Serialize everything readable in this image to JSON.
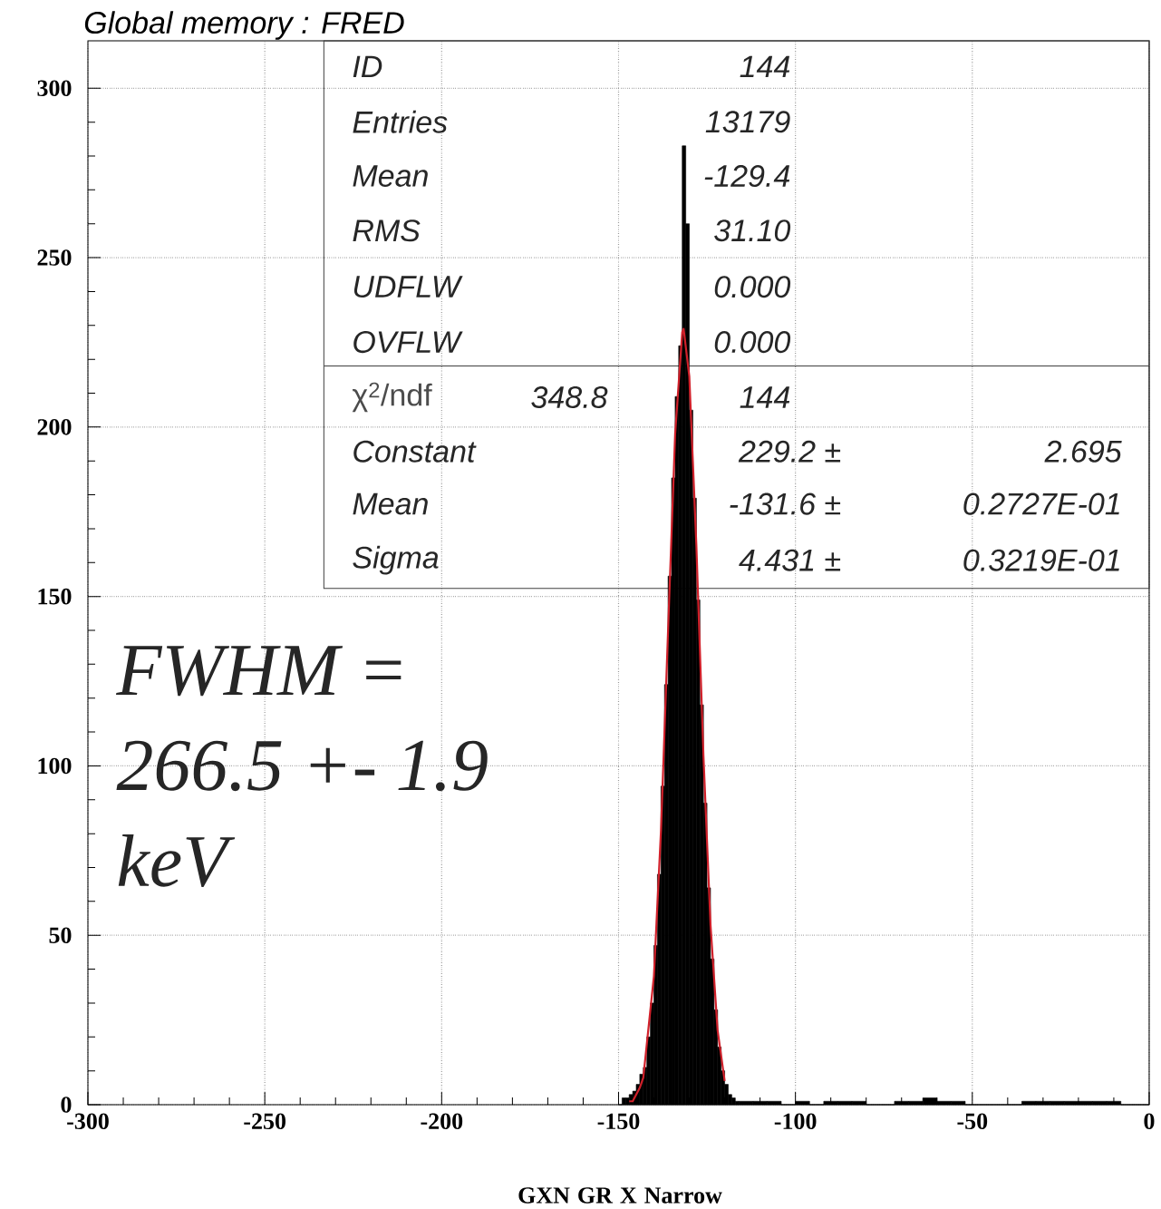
{
  "chart_data": {
    "type": "histogram",
    "title": "Global memory  : FRED",
    "xlabel": "GXN        GR X Narrow",
    "xlim": [
      -300,
      0
    ],
    "ylim": [
      0,
      314
    ],
    "xticks": [
      -300,
      -250,
      -200,
      -150,
      -100,
      -50,
      0
    ],
    "yticks": [
      0,
      50,
      100,
      150,
      200,
      250,
      300
    ],
    "grid": true,
    "series": [
      {
        "color": "#000000",
        "bins": [
          -150,
          -149,
          -148,
          -147,
          -146,
          -145,
          -144,
          -143,
          -142,
          -141,
          -140,
          -139,
          -138,
          -137,
          -136,
          -135,
          -134,
          -133,
          -132,
          -131,
          -130,
          -129,
          -128,
          -127,
          -126,
          -125,
          -124,
          -123,
          -122,
          -121,
          -120,
          -119,
          -118,
          -117,
          -116,
          -112,
          -108,
          -104,
          -100,
          -96,
          -92,
          -88,
          -84,
          -80,
          -76,
          -72,
          -68,
          -64,
          -60,
          -56,
          -52,
          -48,
          -44,
          -40,
          -36,
          -32,
          -28,
          -24,
          -20,
          -16,
          -12,
          -8,
          -4,
          0
        ],
        "values": [
          0,
          2,
          2,
          3,
          4,
          6,
          9,
          11,
          20,
          30,
          47,
          68,
          94,
          124,
          156,
          185,
          209,
          224,
          283,
          260,
          205,
          179,
          149,
          118,
          89,
          64,
          43,
          28,
          17,
          10,
          6,
          3,
          2,
          1,
          1,
          1,
          1,
          0,
          1,
          0,
          1,
          1,
          1,
          0,
          0,
          1,
          1,
          2,
          1,
          1,
          0,
          0,
          0,
          0,
          1,
          1,
          1,
          1,
          1,
          1,
          1,
          0,
          0
        ]
      },
      {
        "type": "line",
        "color": "#d0202a",
        "x": [
          -147,
          -146,
          -144,
          -143,
          -140,
          -138,
          -136,
          -134,
          -132,
          -131.6,
          -130,
          -128,
          -126,
          -124,
          -122,
          -120
        ],
        "values": [
          1,
          1,
          5,
          8,
          38,
          81,
          140,
          198,
          228,
          229,
          215,
          165,
          103,
          53,
          22,
          7
        ]
      }
    ],
    "annotations": [
      "ID",
      "144",
      "Entries",
      "13179",
      "Mean",
      "-129.4",
      "RMS",
      "31.10",
      "UDFLW",
      "0.000",
      "OVFLW",
      "0.000",
      "χ$^{2}$/ndf",
      "348.8",
      "144",
      "Constant",
      "229.2 ±",
      "2.695",
      "Mean",
      "-131.6 ±",
      "0.2727E-01",
      "Sigma",
      "4.431 ±",
      "0.3219E-01",
      "FWHM =",
      "266.5 +-  1.9",
      "keV"
    ]
  }
}
